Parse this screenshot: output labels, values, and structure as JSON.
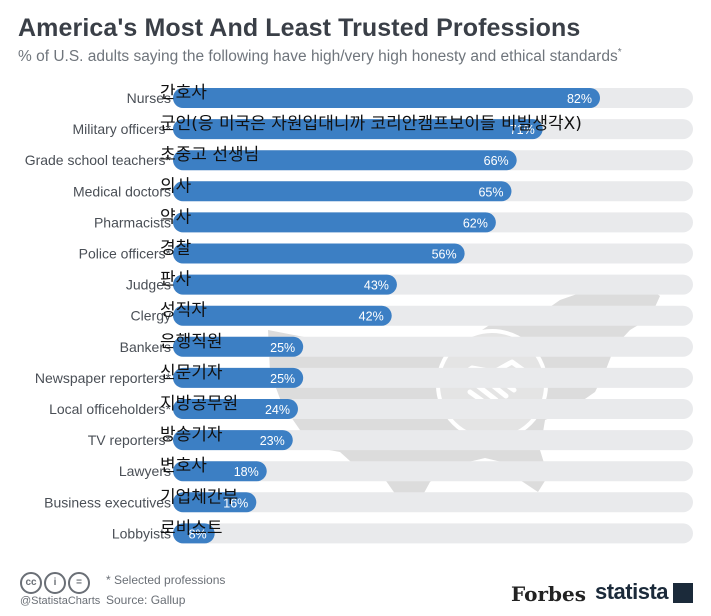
{
  "title": "America's Most And Least Trusted Professions",
  "subtitle": "% of U.S. adults saying the following have high/very high honesty and ethical standards",
  "subtitle_mark": "*",
  "chart_data": {
    "type": "bar",
    "orientation": "horizontal",
    "categories": [
      "Nurses",
      "Military officers",
      "Grade school teachers",
      "Medical doctors",
      "Pharmacists",
      "Police officers",
      "Judges",
      "Clergy",
      "Bankers",
      "Newspaper reporters",
      "Local officeholders",
      "TV reporters",
      "Lawyers",
      "Business executives",
      "Lobbyists"
    ],
    "values": [
      82,
      71,
      66,
      65,
      62,
      56,
      43,
      42,
      25,
      25,
      24,
      23,
      18,
      16,
      8
    ],
    "labels": [
      "82%",
      "71%",
      "66%",
      "65%",
      "62%",
      "56%",
      "43%",
      "42%",
      "25%",
      "25%",
      "24%",
      "23%",
      "18%",
      "16%",
      "8%"
    ],
    "starred": [
      false,
      true,
      true,
      false,
      false,
      true,
      false,
      false,
      false,
      true,
      true,
      true,
      false,
      false,
      false
    ],
    "xlim": [
      0,
      100
    ],
    "bar_color": "#3c7fc4",
    "track_color": "#e9eaec"
  },
  "overlay_annotations": [
    "간호사",
    "군인(응 미국은 자원입대니까 코리안캠프보이들 비빌생각X)",
    "초중고 선생님",
    "의사",
    "약사",
    "경찰",
    "판사",
    "성직자",
    "은행직원",
    "신문기자",
    "지방공무원",
    "방송기자",
    "변호사",
    "기업체간부",
    "로비스트"
  ],
  "footer": {
    "license_icons": [
      "cc",
      "i",
      "="
    ],
    "handle": "@StatistaCharts",
    "note": "* Selected professions",
    "source": "Source: Gallup",
    "forbes": "Forbes",
    "statista": "statista"
  },
  "colors": {
    "title": "#3a3f47",
    "map": "#dcdcdc"
  }
}
